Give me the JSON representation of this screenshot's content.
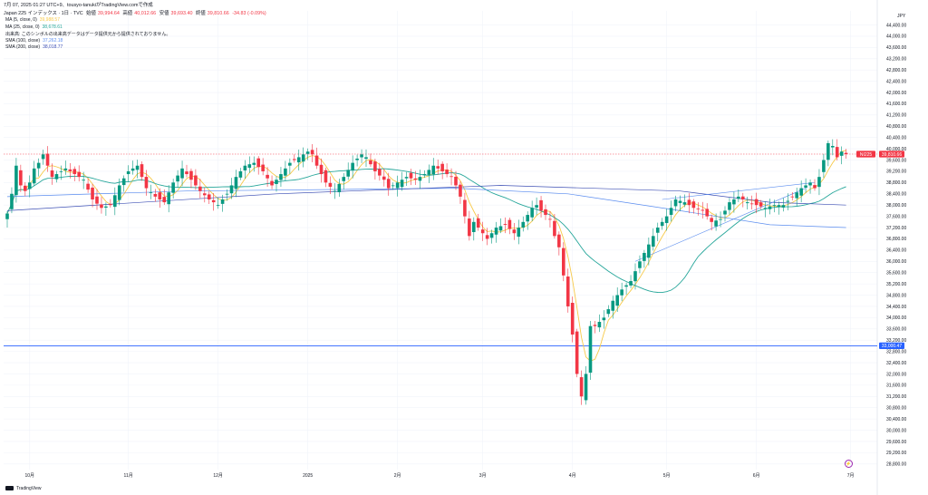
{
  "header": {
    "line1": "7月 07, 2025 01:27 UTC+9、tousyo-tanukiがTradingView.comで作成",
    "title_prefix": "Japan 225 インデックス · 1日 · TVC",
    "open_label": "始値",
    "open_value": "39,994.64",
    "high_label": "高値",
    "high_value": "40,012.66",
    "low_label": "安値",
    "low_value": "39,693.40",
    "close_label": "終値",
    "close_value": "39,810.66",
    "change_value": "-34.83 (-0.09%)"
  },
  "indicators": [
    {
      "label": "MA (5, close, 0)",
      "value": "39,988.57",
      "color": "#f7c948"
    },
    {
      "label": "MA (25, close, 0)",
      "value": "38,678.61",
      "color": "#26a69a"
    },
    {
      "label": "出来高: このシンボルの出来高データはデータ提供元から提供されておりません。",
      "value": "",
      "color": "#131722"
    },
    {
      "label": "SMA (100, close)",
      "value": "37,262.18",
      "color": "#5b8def"
    },
    {
      "label": "SMA (200, close)",
      "value": "38,018.77",
      "color": "#3f51b5"
    }
  ],
  "currency": "JPY",
  "footer": {
    "brand": "TradingView"
  },
  "colors": {
    "up": "#089981",
    "down": "#f23645",
    "ma5": "#f7c948",
    "ma25": "#26a69a",
    "sma100": "#5b8def",
    "sma200": "#3f51b5",
    "hline": "#2962ff",
    "grid": "#f0f3fa"
  },
  "controls": {
    "time_icon": "clock-icon"
  },
  "chart_data": {
    "type": "candlestick",
    "symbol": "NI225",
    "last_price": "39,810.66",
    "hline_value": "33,000.47",
    "ylim": [
      28600,
      44900
    ],
    "y_ticks": [
      28800,
      29200,
      29600,
      30000,
      30400,
      30800,
      31200,
      31600,
      32000,
      32400,
      32800,
      33200,
      33600,
      34000,
      34400,
      34800,
      35200,
      35600,
      36000,
      36400,
      36800,
      37200,
      37600,
      38000,
      38400,
      38800,
      39200,
      39600,
      40000,
      40400,
      40800,
      41200,
      41600,
      42000,
      42400,
      42800,
      43200,
      43600,
      44000,
      44400
    ],
    "x_labels": [
      {
        "label": "10月",
        "index": 5
      },
      {
        "label": "11月",
        "index": 27
      },
      {
        "label": "12月",
        "index": 47
      },
      {
        "label": "2025",
        "index": 67
      },
      {
        "label": "2月",
        "index": 87
      },
      {
        "label": "3月",
        "index": 106
      },
      {
        "label": "4月",
        "index": 126
      },
      {
        "label": "5月",
        "index": 147
      },
      {
        "label": "6月",
        "index": 167
      },
      {
        "label": "7月",
        "index": 188
      }
    ],
    "anchors": [
      [
        0,
        37700
      ],
      [
        1,
        38400
      ],
      [
        2,
        39400
      ],
      [
        3,
        38700
      ],
      [
        4,
        38500
      ],
      [
        5,
        38800
      ],
      [
        6,
        39300
      ],
      [
        7,
        39500
      ],
      [
        8,
        39800
      ],
      [
        9,
        39400
      ],
      [
        10,
        39000
      ],
      [
        13,
        39300
      ],
      [
        14,
        39200
      ],
      [
        17,
        38900
      ],
      [
        19,
        38200
      ],
      [
        21,
        37900
      ],
      [
        23,
        38000
      ],
      [
        25,
        38700
      ],
      [
        27,
        39200
      ],
      [
        29,
        39400
      ],
      [
        31,
        38600
      ],
      [
        33,
        38300
      ],
      [
        35,
        38100
      ],
      [
        37,
        38800
      ],
      [
        39,
        39300
      ],
      [
        41,
        38900
      ],
      [
        43,
        38500
      ],
      [
        45,
        38200
      ],
      [
        47,
        38000
      ],
      [
        49,
        38400
      ],
      [
        51,
        39000
      ],
      [
        53,
        39400
      ],
      [
        55,
        39500
      ],
      [
        57,
        39200
      ],
      [
        59,
        38700
      ],
      [
        61,
        39100
      ],
      [
        63,
        39500
      ],
      [
        65,
        39700
      ],
      [
        67,
        39900
      ],
      [
        68,
        39800
      ],
      [
        69,
        39400
      ],
      [
        71,
        38800
      ],
      [
        73,
        38500
      ],
      [
        75,
        39000
      ],
      [
        77,
        39500
      ],
      [
        79,
        39800
      ],
      [
        80,
        39700
      ],
      [
        82,
        39200
      ],
      [
        84,
        38900
      ],
      [
        85,
        38600
      ],
      [
        87,
        38800
      ],
      [
        89,
        39000
      ],
      [
        91,
        38900
      ],
      [
        93,
        39100
      ],
      [
        95,
        39400
      ],
      [
        97,
        39200
      ],
      [
        99,
        39000
      ],
      [
        100,
        38700
      ],
      [
        101,
        38300
      ],
      [
        102,
        37600
      ],
      [
        103,
        36900
      ],
      [
        104,
        37400
      ],
      [
        105,
        37200
      ],
      [
        107,
        36800
      ],
      [
        109,
        37200
      ],
      [
        111,
        37300
      ],
      [
        113,
        37000
      ],
      [
        115,
        37400
      ],
      [
        117,
        37900
      ],
      [
        118,
        38000
      ],
      [
        119,
        37800
      ],
      [
        121,
        37500
      ],
      [
        122,
        36900
      ],
      [
        123,
        36500
      ],
      [
        124,
        35500
      ],
      [
        125,
        34400
      ],
      [
        126,
        33400
      ],
      [
        127,
        32000
      ],
      [
        128,
        31200
      ],
      [
        129,
        32000
      ],
      [
        130,
        33700
      ],
      [
        131,
        33700
      ],
      [
        133,
        34000
      ],
      [
        135,
        34600
      ],
      [
        137,
        35000
      ],
      [
        139,
        35300
      ],
      [
        141,
        36000
      ],
      [
        143,
        36600
      ],
      [
        145,
        37200
      ],
      [
        147,
        37600
      ],
      [
        149,
        38200
      ],
      [
        151,
        38100
      ],
      [
        153,
        37900
      ],
      [
        155,
        37800
      ],
      [
        157,
        37400
      ],
      [
        159,
        37500
      ],
      [
        161,
        38100
      ],
      [
        163,
        38300
      ],
      [
        165,
        38100
      ],
      [
        167,
        38000
      ],
      [
        169,
        37900
      ],
      [
        171,
        38000
      ],
      [
        173,
        38000
      ],
      [
        175,
        38300
      ],
      [
        177,
        38600
      ],
      [
        179,
        38800
      ],
      [
        180,
        38600
      ],
      [
        181,
        39000
      ],
      [
        182,
        39600
      ],
      [
        183,
        40200
      ],
      [
        184,
        40100
      ],
      [
        185,
        39700
      ],
      [
        186,
        39900
      ],
      [
        187,
        39810
      ]
    ],
    "series": [
      {
        "name": "MA (5, close, 0)",
        "kind": "ma",
        "period": 5
      },
      {
        "name": "MA (25, close, 0)",
        "kind": "ma",
        "period": 25
      },
      {
        "name": "SMA (100, close)",
        "kind": "curve",
        "points": [
          [
            0,
            38300
          ],
          [
            40,
            38500
          ],
          [
            100,
            38600
          ],
          [
            125,
            38400
          ],
          [
            150,
            37800
          ],
          [
            170,
            37300
          ],
          [
            187,
            37200
          ]
        ]
      },
      {
        "name": "SMA (200, close)",
        "kind": "curve",
        "points": [
          [
            0,
            37800
          ],
          [
            60,
            38400
          ],
          [
            110,
            38700
          ],
          [
            150,
            38500
          ],
          [
            170,
            38100
          ],
          [
            187,
            38000
          ]
        ]
      }
    ],
    "trendlines": [
      {
        "from": [
          140,
          36000
        ],
        "to": [
          178,
          38600
        ]
      },
      {
        "from": [
          146,
          38200
        ],
        "to": [
          180,
          38800
        ]
      }
    ]
  }
}
